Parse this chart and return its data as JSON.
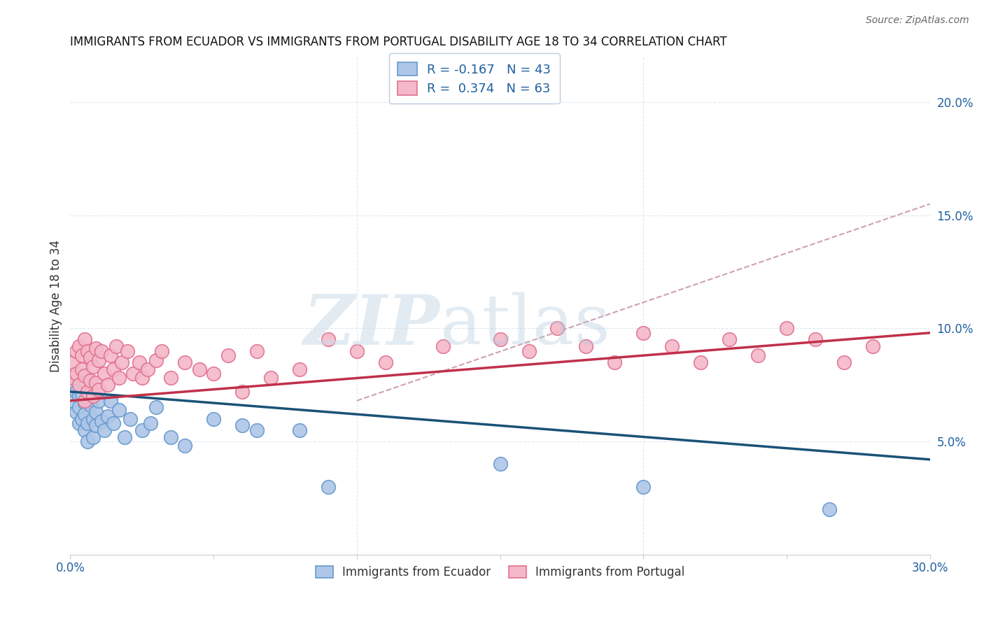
{
  "title": "IMMIGRANTS FROM ECUADOR VS IMMIGRANTS FROM PORTUGAL DISABILITY AGE 18 TO 34 CORRELATION CHART",
  "source": "Source: ZipAtlas.com",
  "ylabel": "Disability Age 18 to 34",
  "xlim": [
    0.0,
    0.3
  ],
  "ylim": [
    0.0,
    0.22
  ],
  "yticks_right": [
    0.05,
    0.1,
    0.15,
    0.2
  ],
  "ytick_right_labels": [
    "5.0%",
    "10.0%",
    "15.0%",
    "20.0%"
  ],
  "ecuador_color": "#aec6e8",
  "ecuador_edge": "#6699cc",
  "portugal_color": "#f4b8c8",
  "portugal_edge": "#e07090",
  "ecuador_R": -0.167,
  "ecuador_N": 43,
  "portugal_R": 0.374,
  "portugal_N": 63,
  "ecuador_line_color": "#1a5276",
  "portugal_line_color": "#c0304a",
  "dashed_line_color": "#d0a0b0",
  "background_color": "#ffffff",
  "grid_color": "#dde8f0",
  "ecuador_line_x0": 0.0,
  "ecuador_line_y0": 0.072,
  "ecuador_line_x1": 0.3,
  "ecuador_line_y1": 0.042,
  "portugal_line_x0": 0.0,
  "portugal_line_y0": 0.068,
  "portugal_line_x1": 0.3,
  "portugal_line_y1": 0.098,
  "dashed_line_x0": 0.1,
  "dashed_line_y0": 0.068,
  "dashed_line_x1": 0.3,
  "dashed_line_y1": 0.155,
  "ecuador_x": [
    0.001,
    0.001,
    0.002,
    0.002,
    0.003,
    0.003,
    0.003,
    0.004,
    0.004,
    0.005,
    0.005,
    0.005,
    0.006,
    0.006,
    0.006,
    0.007,
    0.007,
    0.008,
    0.008,
    0.009,
    0.009,
    0.01,
    0.011,
    0.012,
    0.013,
    0.014,
    0.015,
    0.017,
    0.019,
    0.021,
    0.025,
    0.028,
    0.03,
    0.035,
    0.04,
    0.05,
    0.06,
    0.065,
    0.08,
    0.09,
    0.15,
    0.2,
    0.265
  ],
  "ecuador_y": [
    0.075,
    0.068,
    0.072,
    0.063,
    0.07,
    0.065,
    0.058,
    0.071,
    0.06,
    0.067,
    0.062,
    0.055,
    0.069,
    0.058,
    0.05,
    0.066,
    0.073,
    0.06,
    0.052,
    0.063,
    0.057,
    0.068,
    0.059,
    0.055,
    0.061,
    0.068,
    0.058,
    0.064,
    0.052,
    0.06,
    0.055,
    0.058,
    0.065,
    0.052,
    0.048,
    0.06,
    0.057,
    0.055,
    0.055,
    0.03,
    0.04,
    0.03,
    0.02
  ],
  "portugal_x": [
    0.001,
    0.001,
    0.002,
    0.002,
    0.003,
    0.003,
    0.004,
    0.004,
    0.005,
    0.005,
    0.005,
    0.006,
    0.006,
    0.007,
    0.007,
    0.008,
    0.008,
    0.009,
    0.009,
    0.01,
    0.01,
    0.011,
    0.012,
    0.013,
    0.014,
    0.015,
    0.016,
    0.017,
    0.018,
    0.02,
    0.022,
    0.024,
    0.025,
    0.027,
    0.03,
    0.032,
    0.035,
    0.04,
    0.045,
    0.05,
    0.055,
    0.06,
    0.065,
    0.07,
    0.08,
    0.09,
    0.1,
    0.11,
    0.13,
    0.15,
    0.16,
    0.17,
    0.18,
    0.19,
    0.2,
    0.21,
    0.22,
    0.23,
    0.24,
    0.25,
    0.26,
    0.27,
    0.28
  ],
  "portugal_y": [
    0.085,
    0.078,
    0.09,
    0.08,
    0.092,
    0.075,
    0.088,
    0.082,
    0.095,
    0.079,
    0.068,
    0.09,
    0.072,
    0.087,
    0.077,
    0.083,
    0.07,
    0.091,
    0.076,
    0.086,
    0.073,
    0.09,
    0.08,
    0.075,
    0.088,
    0.082,
    0.092,
    0.078,
    0.085,
    0.09,
    0.08,
    0.085,
    0.078,
    0.082,
    0.086,
    0.09,
    0.078,
    0.085,
    0.082,
    0.08,
    0.088,
    0.072,
    0.09,
    0.078,
    0.082,
    0.095,
    0.09,
    0.085,
    0.092,
    0.095,
    0.09,
    0.1,
    0.092,
    0.085,
    0.098,
    0.092,
    0.085,
    0.095,
    0.088,
    0.1,
    0.095,
    0.085,
    0.092
  ]
}
